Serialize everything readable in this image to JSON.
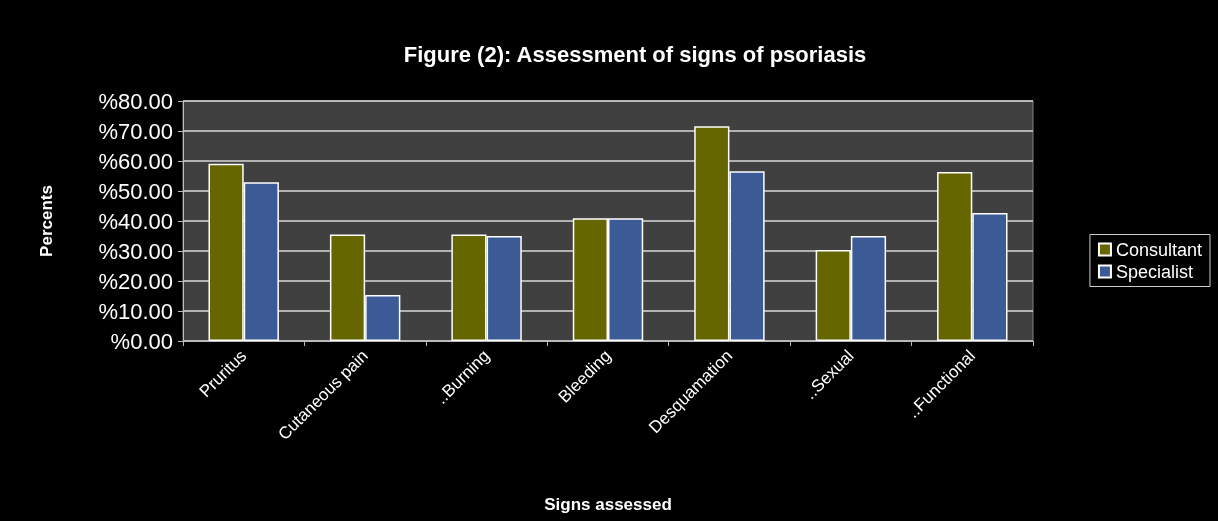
{
  "chart_data": {
    "type": "bar",
    "title": "Figure (2): Assessment of signs of psoriasis",
    "xlabel": "Signs assessed",
    "ylabel": "Percents",
    "categories": [
      "Pruritus",
      "Cutaneous pain",
      "..Burning",
      "Bleeding",
      "Desquamation",
      "..Sexual",
      "..Functional"
    ],
    "series": [
      {
        "name": "Consultant",
        "color": "#666600",
        "values": [
          59.1,
          35.5,
          35.5,
          40.9,
          71.6,
          30.3,
          56.3
        ]
      },
      {
        "name": "Specialist",
        "color": "#3c5a96",
        "values": [
          52.9,
          15.3,
          35.0,
          40.9,
          56.6,
          35.0,
          42.7
        ]
      }
    ],
    "ylim": [
      0,
      80
    ],
    "yticks": [
      {
        "value": 0,
        "label": "%0.00"
      },
      {
        "value": 10,
        "label": "%10.00"
      },
      {
        "value": 20,
        "label": "%20.00"
      },
      {
        "value": 30,
        "label": "%30.00"
      },
      {
        "value": 40,
        "label": "%40.00"
      },
      {
        "value": 50,
        "label": "%50.00"
      },
      {
        "value": 60,
        "label": "%60.00"
      },
      {
        "value": 70,
        "label": "%70.00"
      },
      {
        "value": 80,
        "label": "%80.00"
      }
    ],
    "grid": "y",
    "legend": "right"
  }
}
